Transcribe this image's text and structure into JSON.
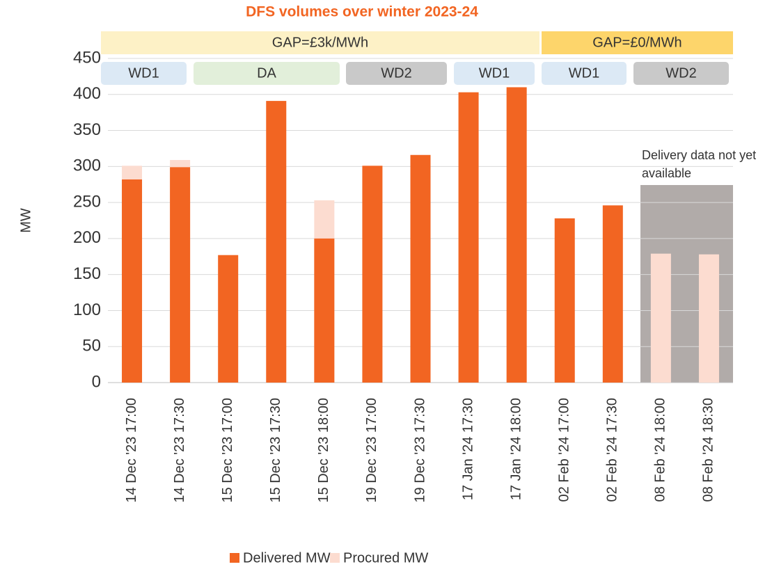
{
  "chart_data": {
    "type": "bar",
    "title": "DFS volumes over winter 2023-24",
    "ylabel": "MW",
    "annotation": "Delivery data not yet available",
    "bands": [
      "GAP=£3k/MWh",
      "GAP=£0/MWh"
    ],
    "periods": [
      "WD1",
      "DA",
      "WD2",
      "WD1",
      "WD1",
      "WD2"
    ],
    "categories": [
      "14 Dec '23 17:00",
      "14 Dec '23 17:30",
      "15 Dec '23 17:00",
      "15 Dec '23 17:30",
      "15 Dec '23 18:00",
      "19 Dec '23 17:00",
      "19 Dec '23 17:30",
      "17 Jan '24 17:30",
      "17 Jan '24 18:00",
      "02 Feb '24 17:00",
      "02 Feb '24 17:30",
      "08 Feb '24 18:00",
      "08 Feb '24 18:30"
    ],
    "series": [
      {
        "name": "Delivered MW",
        "color": "#f26522",
        "values": [
          282,
          299,
          177,
          391,
          200,
          301,
          316,
          403,
          410,
          228,
          246,
          null,
          null
        ]
      },
      {
        "name": "Procured MW",
        "color": "#fcdcd0",
        "values": [
          301,
          309,
          null,
          null,
          253,
          null,
          null,
          null,
          null,
          null,
          null,
          179,
          178
        ]
      }
    ],
    "ylim": [
      0,
      450
    ],
    "yticks": [
      0,
      50,
      100,
      150,
      200,
      250,
      300,
      350,
      400,
      450
    ],
    "grid": true
  }
}
